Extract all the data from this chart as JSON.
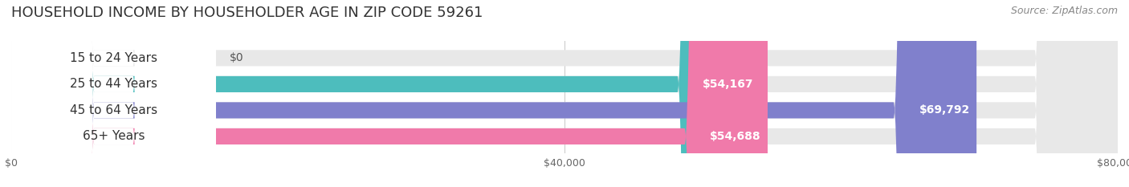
{
  "title": "HOUSEHOLD INCOME BY HOUSEHOLDER AGE IN ZIP CODE 59261",
  "source": "Source: ZipAtlas.com",
  "categories": [
    "15 to 24 Years",
    "25 to 44 Years",
    "45 to 64 Years",
    "65+ Years"
  ],
  "values": [
    0,
    54167,
    69792,
    54688
  ],
  "bar_colors": [
    "#c9afd4",
    "#4dbdbd",
    "#8080cc",
    "#f07aaa"
  ],
  "bar_bg_color": "#e8e8e8",
  "xlim": [
    0,
    80000
  ],
  "xticks": [
    0,
    40000,
    80000
  ],
  "xtick_labels": [
    "$0",
    "$40,000",
    "$80,000"
  ],
  "title_fontsize": 13,
  "source_fontsize": 9,
  "label_fontsize": 11,
  "value_fontsize": 10,
  "background_color": "#ffffff",
  "bar_height": 0.62,
  "figsize": [
    14.06,
    2.33
  ],
  "dpi": 100
}
